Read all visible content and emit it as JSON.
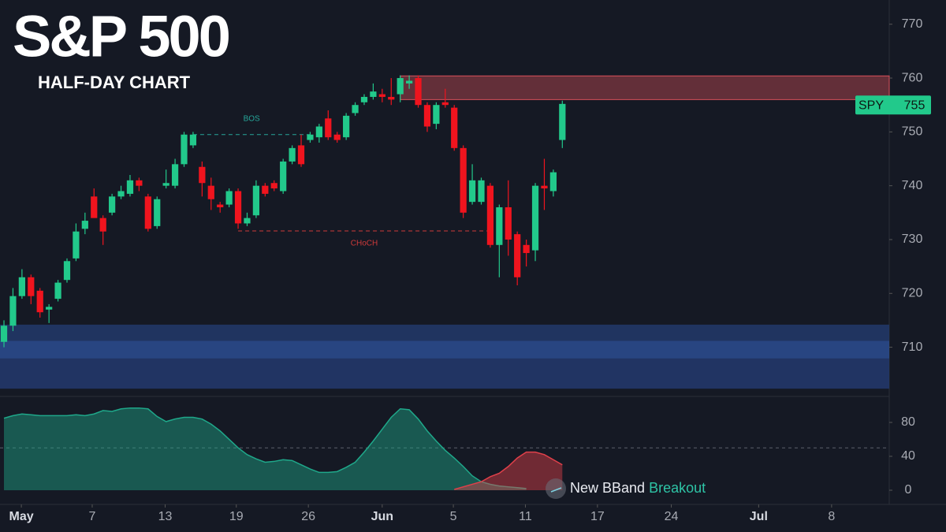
{
  "chart_data": [
    {
      "type": "candlestick",
      "title": "S&P 500",
      "subtitle": "HALF-DAY CHART",
      "open": [
        711,
        714,
        719.5,
        723,
        720.5,
        717,
        719,
        722.5,
        726.5,
        732,
        738,
        734,
        735,
        738,
        738.5,
        741,
        738,
        732.5,
        740,
        740,
        744,
        747.5,
        743.5,
        740,
        736.5,
        736.5,
        739,
        733,
        734.5,
        740,
        740.5,
        739,
        744.5,
        747.5,
        748.5,
        749,
        752.5,
        749.5,
        749,
        753.5,
        755.5,
        756.5,
        757,
        756.5,
        757,
        759,
        760,
        755,
        751.5,
        755.5,
        754.5,
        747,
        737,
        737,
        740,
        729,
        736,
        731,
        729,
        728,
        740,
        739,
        748.5
      ],
      "high": [
        715,
        721,
        724.5,
        723.5,
        721,
        718,
        722.5,
        726.5,
        733,
        735,
        739.5,
        734.5,
        738.5,
        740,
        742,
        741.5,
        738.5,
        738,
        743,
        745,
        750,
        750,
        744.5,
        741.5,
        737,
        739.5,
        739.5,
        735,
        741,
        740.5,
        741,
        745,
        747.5,
        749.5,
        750,
        751.5,
        754,
        750,
        753.5,
        755.5,
        757,
        759,
        758,
        760,
        760.5,
        760.5,
        760.5,
        755.5,
        755.5,
        758,
        755,
        747.5,
        744,
        741.5,
        740.5,
        736.5,
        741,
        731.5,
        730,
        740.5,
        745,
        743,
        755.8
      ],
      "low": [
        710,
        713,
        719,
        718,
        715.5,
        714.5,
        718.5,
        722,
        726,
        731,
        734.5,
        729,
        734.5,
        737.5,
        738,
        739,
        731.5,
        732,
        739.5,
        739.5,
        743.5,
        747,
        738,
        735.5,
        735,
        736,
        732,
        732.5,
        734,
        738,
        739,
        738.5,
        744,
        743.5,
        748,
        748,
        748.5,
        748,
        748.5,
        753,
        755,
        756,
        755.5,
        755,
        755.5,
        758,
        754.5,
        750,
        750.5,
        754.5,
        746.5,
        734,
        736.5,
        736.5,
        728.5,
        723,
        727,
        721.5,
        725,
        726,
        735.5,
        738,
        747
      ],
      "close": [
        714,
        719.5,
        723,
        719.5,
        716.5,
        717.5,
        722,
        726,
        731.5,
        733.5,
        734,
        731.5,
        738,
        739,
        741,
        740,
        732,
        737.5,
        740.5,
        744,
        749.5,
        749.5,
        740.5,
        737.5,
        736,
        739,
        733,
        734,
        740,
        738.5,
        739.5,
        744.5,
        747,
        744,
        749.5,
        751,
        749,
        748.5,
        753,
        755,
        756.5,
        757.5,
        756.5,
        756,
        760,
        759.5,
        755,
        751,
        755,
        755,
        747,
        735,
        741,
        741,
        729,
        736,
        730,
        723,
        727.5,
        740,
        739.5,
        742.5,
        755.2
      ],
      "up_color": "#22c98b",
      "down_color": "#f0141e",
      "xlim": [
        -0.44,
        98.3
      ],
      "xticks": [
        {
          "value": 1.93,
          "label": "May"
        },
        {
          "value": 9.8,
          "label": "7"
        },
        {
          "value": 17.9,
          "label": "13"
        },
        {
          "value": 25.8,
          "label": "19"
        },
        {
          "value": 33.8,
          "label": "26"
        },
        {
          "value": 42,
          "label": "Jun"
        },
        {
          "value": 49.9,
          "label": "5"
        },
        {
          "value": 57.9,
          "label": "11"
        },
        {
          "value": 65.9,
          "label": "17"
        },
        {
          "value": 74.1,
          "label": "24"
        },
        {
          "value": 83.8,
          "label": "Jul"
        },
        {
          "value": 91.9,
          "label": "8"
        }
      ],
      "ylim": [
        701.3,
        774.5
      ],
      "yticks": [
        710,
        720,
        730,
        740,
        750,
        760,
        770
      ],
      "zones": [
        {
          "low": 756,
          "high": 760.4,
          "from": 44,
          "color": "#d9505a"
        },
        {
          "low": 711.2,
          "high": 714.2,
          "color": "#22396b"
        },
        {
          "low": 707.9,
          "high": 711.2,
          "color": "#2c4e92"
        },
        {
          "low": 702.3,
          "high": 707.9,
          "color": "#23396e"
        }
      ],
      "levels": [
        {
          "label": "BOS",
          "value": 749.5,
          "from": 21,
          "to": 34,
          "color": "#26a69a"
        },
        {
          "label": "CHoCH",
          "value": 731.6,
          "from": 26,
          "to": 54,
          "color": "#d03a3a"
        }
      ],
      "price_tag": {
        "name": "SPY",
        "value": 755,
        "color": "#22c98b"
      }
    },
    {
      "type": "area",
      "ylim": [
        -2.8,
        108.8
      ],
      "yticks": [
        0,
        40,
        80
      ],
      "ref_line": 50,
      "series": [
        {
          "color": "#1fa88a",
          "values": [
            85,
            88,
            90,
            89,
            88,
            88,
            88,
            88,
            89,
            88,
            90,
            94,
            93,
            96,
            97,
            97,
            96,
            87,
            81,
            84,
            86,
            86,
            84,
            78,
            70,
            60,
            50,
            42,
            37,
            33,
            34,
            36,
            35,
            30,
            25,
            21,
            21,
            22,
            27,
            33,
            45,
            58,
            72,
            86,
            96,
            95,
            84,
            70,
            58,
            47,
            38,
            28,
            17,
            10,
            7,
            5,
            4,
            3,
            2,
            null,
            null,
            null,
            null
          ]
        },
        {
          "color": "#e0404a",
          "values": [
            null,
            null,
            null,
            null,
            null,
            null,
            null,
            null,
            null,
            null,
            null,
            null,
            null,
            null,
            null,
            null,
            null,
            null,
            null,
            null,
            null,
            null,
            null,
            null,
            null,
            null,
            null,
            null,
            null,
            null,
            null,
            null,
            null,
            null,
            null,
            null,
            null,
            null,
            null,
            null,
            null,
            null,
            null,
            null,
            null,
            null,
            null,
            null,
            null,
            null,
            1,
            4,
            7,
            10,
            16,
            20,
            28,
            38,
            45,
            45,
            42,
            36,
            30
          ]
        }
      ],
      "annotation": {
        "text": "New BBand",
        "highlight": "Breakout"
      }
    }
  ]
}
